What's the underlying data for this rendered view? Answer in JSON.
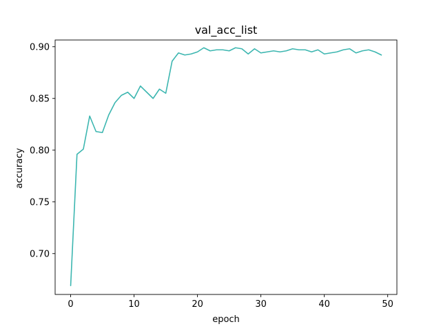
{
  "chart_data": {
    "type": "line",
    "title": "val_acc_list",
    "xlabel": "epoch",
    "ylabel": "accuracy",
    "xlim": [
      -2.45,
      51.45
    ],
    "ylim": [
      0.6605,
      0.9065
    ],
    "grid": false,
    "x_ticks": [
      0,
      10,
      20,
      30,
      40,
      50
    ],
    "x_tick_labels": [
      "0",
      "10",
      "20",
      "30",
      "40",
      "50"
    ],
    "y_ticks": [
      0.7,
      0.75,
      0.8,
      0.85,
      0.9
    ],
    "y_tick_labels": [
      "0.70",
      "0.75",
      "0.80",
      "0.85",
      "0.90"
    ],
    "series": [
      {
        "color": "#3cb6b0",
        "x": [
          0,
          1,
          2,
          3,
          4,
          5,
          6,
          7,
          8,
          9,
          10,
          11,
          12,
          13,
          14,
          15,
          16,
          17,
          18,
          19,
          20,
          21,
          22,
          23,
          24,
          25,
          26,
          27,
          28,
          29,
          30,
          31,
          32,
          33,
          34,
          35,
          36,
          37,
          38,
          39,
          40,
          41,
          42,
          43,
          44,
          45,
          46,
          47,
          48,
          49
        ],
        "values": [
          0.669,
          0.796,
          0.801,
          0.833,
          0.818,
          0.817,
          0.834,
          0.846,
          0.853,
          0.856,
          0.85,
          0.862,
          0.856,
          0.85,
          0.859,
          0.855,
          0.886,
          0.894,
          0.892,
          0.893,
          0.895,
          0.899,
          0.896,
          0.897,
          0.897,
          0.896,
          0.899,
          0.898,
          0.893,
          0.898,
          0.894,
          0.895,
          0.896,
          0.895,
          0.896,
          0.898,
          0.897,
          0.897,
          0.895,
          0.897,
          0.893,
          0.894,
          0.895,
          0.897,
          0.898,
          0.894,
          0.896,
          0.897,
          0.895,
          0.892
        ]
      }
    ]
  }
}
